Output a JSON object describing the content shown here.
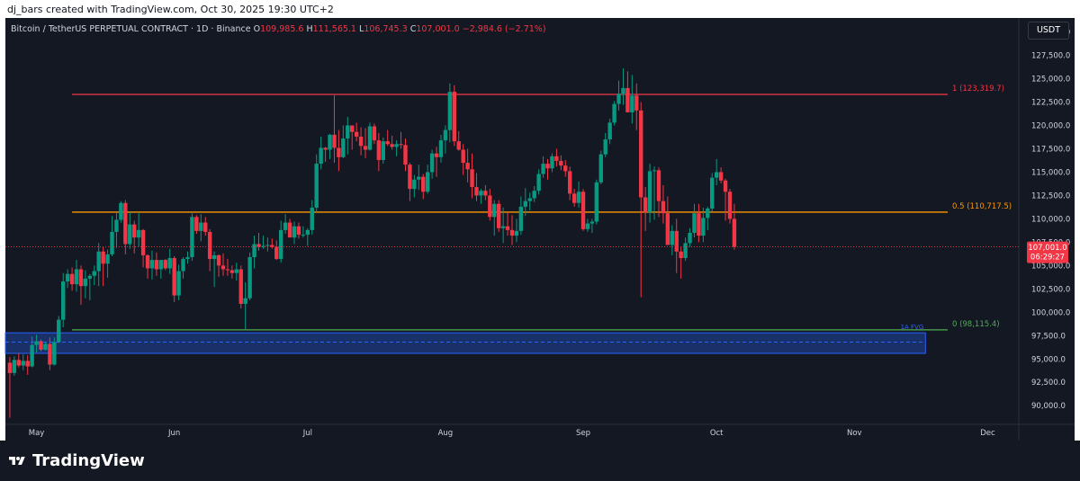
{
  "header": {
    "credit": "dj_bars created with TradingView.com, Oct 30, 2025 19:30 UTC+2"
  },
  "symbol_info": {
    "title": "Bitcoin / TetherUS PERPETUAL CONTRACT · 1D · Binance",
    "open_label": "O",
    "open_value": "109,985.6",
    "high_label": "H",
    "high_value": "111,565.1",
    "low_label": "L",
    "low_value": "106,745.3",
    "close_label": "C",
    "close_value": "107,001.0",
    "change": "−2,984.6 (−2.71%)"
  },
  "currency_button": "USDT",
  "brand": {
    "name": "TradingView"
  },
  "colors": {
    "up": "#089981",
    "down": "#f23645",
    "background": "#141823",
    "fib_1": "#f23645",
    "fib_05": "#ff9800",
    "fib_0": "#4caf50",
    "fvg": "#2962ff"
  },
  "chart_data": {
    "type": "candlestick",
    "title": "Bitcoin / TetherUS PERPETUAL CONTRACT · 1D · Binance",
    "y_axis": {
      "range": [
        88000,
        131500
      ],
      "ticks": [
        "130,000.0",
        "127,500.0",
        "125,000.0",
        "122,500.0",
        "120,000.0",
        "117,500.0",
        "115,000.0",
        "112,500.0",
        "110,000.0",
        "107,500.0",
        "105,000.0",
        "102,500.0",
        "100,000.0",
        "97,500.0",
        "95,000.0",
        "92,500.0",
        "90,000.0"
      ],
      "tick_values": [
        130000,
        127500,
        125000,
        122500,
        120000,
        117500,
        115000,
        112500,
        110000,
        107500,
        105000,
        102500,
        100000,
        97500,
        95000,
        92500,
        90000
      ]
    },
    "x_axis": {
      "range": [
        "2025-04-24",
        "2025-12-08"
      ],
      "ticks": [
        "May",
        "Jun",
        "Jul",
        "Aug",
        "Sep",
        "Oct",
        "Nov",
        "Dec"
      ],
      "tick_dates": [
        "2025-05-01",
        "2025-06-01",
        "2025-07-01",
        "2025-08-01",
        "2025-09-01",
        "2025-10-01",
        "2025-11-01",
        "2025-12-01"
      ]
    },
    "price_label": {
      "value": "107,001.0",
      "countdown": "06:29:27",
      "price": 107001.0
    },
    "fib_levels": [
      {
        "label": "1 (123,319.7)",
        "price": 123319.7,
        "color": "#f23645",
        "start": "2025-05-09",
        "end": "2025-11-22"
      },
      {
        "label": "0.5 (110,717.5)",
        "price": 110717.5,
        "color": "#ff9800",
        "start": "2025-05-09",
        "end": "2025-11-22"
      },
      {
        "label": "0 (98,115.4)",
        "price": 98115.4,
        "color": "#4caf50",
        "start": "2025-05-09",
        "end": "2025-11-22"
      }
    ],
    "zones": [
      {
        "label": "1A FVG",
        "top": 97800,
        "bottom": 95600,
        "mid": 96800,
        "start": "2025-04-24",
        "end": "2025-11-17"
      }
    ],
    "candles": {
      "start_date": "2025-04-25",
      "ohlc": [
        [
          94600,
          95200,
          88700,
          93500
        ],
        [
          93500,
          95300,
          93200,
          94900
        ],
        [
          94900,
          95600,
          94100,
          94300
        ],
        [
          94300,
          95500,
          93800,
          94800
        ],
        [
          94800,
          95400,
          93300,
          94200
        ],
        [
          94200,
          97400,
          94100,
          96500
        ],
        [
          96500,
          97600,
          95700,
          96900
        ],
        [
          96900,
          97100,
          95800,
          96000
        ],
        [
          96000,
          96800,
          95900,
          96600
        ],
        [
          96600,
          97300,
          93800,
          94400
        ],
        [
          94400,
          97300,
          94300,
          96800
        ],
        [
          96800,
          99600,
          96700,
          99200
        ],
        [
          99200,
          104200,
          98400,
          103300
        ],
        [
          103300,
          104600,
          102600,
          104100
        ],
        [
          104100,
          104800,
          102300,
          103000
        ],
        [
          103000,
          105600,
          102200,
          104600
        ],
        [
          104600,
          105000,
          100800,
          102800
        ],
        [
          102800,
          104500,
          101500,
          103600
        ],
        [
          103600,
          104100,
          101300,
          103900
        ],
        [
          103900,
          105000,
          102900,
          104400
        ],
        [
          104400,
          107400,
          102800,
          106500
        ],
        [
          106500,
          107000,
          102800,
          105200
        ],
        [
          105200,
          106700,
          103700,
          106200
        ],
        [
          106200,
          110300,
          106000,
          108600
        ],
        [
          108600,
          110600,
          106900,
          109900
        ],
        [
          109900,
          111900,
          109600,
          111700
        ],
        [
          111700,
          112000,
          106200,
          107300
        ],
        [
          107300,
          110700,
          106800,
          109400
        ],
        [
          109400,
          109800,
          106300,
          108000
        ],
        [
          108000,
          110600,
          107000,
          108800
        ],
        [
          108800,
          108900,
          104800,
          106100
        ],
        [
          106100,
          106200,
          103600,
          104700
        ],
        [
          104700,
          106600,
          103500,
          105600
        ],
        [
          105600,
          106400,
          103900,
          104600
        ],
        [
          104600,
          105600,
          103600,
          105600
        ],
        [
          105600,
          105700,
          104500,
          104700
        ],
        [
          104700,
          106800,
          104100,
          105800
        ],
        [
          105800,
          106000,
          101100,
          101800
        ],
        [
          101800,
          105100,
          101300,
          104400
        ],
        [
          104400,
          105900,
          103600,
          105700
        ],
        [
          105700,
          106500,
          105200,
          105900
        ],
        [
          105900,
          110600,
          105500,
          110200
        ],
        [
          110200,
          110400,
          108400,
          108700
        ],
        [
          108700,
          110500,
          107600,
          109600
        ],
        [
          109600,
          110200,
          108200,
          108600
        ],
        [
          108600,
          108900,
          104400,
          105700
        ],
        [
          105700,
          106500,
          102700,
          106100
        ],
        [
          106100,
          106200,
          103800,
          105000
        ],
        [
          105000,
          106300,
          103900,
          104600
        ],
        [
          104600,
          105700,
          103900,
          104500
        ],
        [
          104500,
          105000,
          103600,
          104200
        ],
        [
          104200,
          105300,
          103400,
          104600
        ],
        [
          104600,
          105000,
          100400,
          100900
        ],
        [
          100900,
          103200,
          98200,
          101500
        ],
        [
          101500,
          106400,
          101300,
          105900
        ],
        [
          105900,
          108200,
          104700,
          107300
        ],
        [
          107300,
          108500,
          106600,
          107000
        ],
        [
          107000,
          108200,
          106800,
          107100
        ],
        [
          107100,
          108000,
          106500,
          107200
        ],
        [
          107200,
          107900,
          106800,
          107000
        ],
        [
          107000,
          107700,
          105600,
          105700
        ],
        [
          105700,
          109800,
          105300,
          108800
        ],
        [
          108800,
          110500,
          108400,
          109600
        ],
        [
          109600,
          110000,
          108100,
          108000
        ],
        [
          108000,
          109700,
          107300,
          109200
        ],
        [
          109200,
          109600,
          107900,
          108300
        ],
        [
          108300,
          109200,
          108000,
          108300
        ],
        [
          108300,
          109000,
          107100,
          108800
        ],
        [
          108800,
          112000,
          108300,
          111200
        ],
        [
          111200,
          116900,
          110700,
          115900
        ],
        [
          115900,
          118800,
          115300,
          117600
        ],
        [
          117600,
          117700,
          116100,
          117400
        ],
        [
          117400,
          119100,
          116400,
          119000
        ],
        [
          119000,
          123200,
          116000,
          117600
        ],
        [
          117600,
          119500,
          115100,
          116600
        ],
        [
          116600,
          120000,
          116500,
          118600
        ],
        [
          118600,
          120900,
          116900,
          120000
        ],
        [
          120000,
          120000,
          117400,
          119300
        ],
        [
          119300,
          120300,
          118300,
          118800
        ],
        [
          118800,
          119800,
          116800,
          117800
        ],
        [
          117800,
          119700,
          116500,
          117400
        ],
        [
          117400,
          120300,
          117300,
          119900
        ],
        [
          119900,
          120200,
          118000,
          118400
        ],
        [
          118400,
          119200,
          115100,
          116300
        ],
        [
          116300,
          118700,
          115900,
          118300
        ],
        [
          118300,
          119500,
          117800,
          118000
        ],
        [
          118000,
          118900,
          117400,
          117700
        ],
        [
          117700,
          118400,
          116700,
          118000
        ],
        [
          118000,
          119300,
          117500,
          117900
        ],
        [
          117900,
          118600,
          115100,
          115800
        ],
        [
          115800,
          116000,
          111900,
          113200
        ],
        [
          113200,
          114700,
          112300,
          114200
        ],
        [
          114200,
          115800,
          113100,
          114500
        ],
        [
          114500,
          114800,
          112100,
          112900
        ],
        [
          112900,
          115800,
          112700,
          115000
        ],
        [
          115000,
          117400,
          114300,
          117000
        ],
        [
          117000,
          117700,
          114500,
          116600
        ],
        [
          116600,
          119000,
          116000,
          118400
        ],
        [
          118400,
          120000,
          117000,
          119500
        ],
        [
          119500,
          124500,
          118200,
          123600
        ],
        [
          123600,
          124300,
          117800,
          118300
        ],
        [
          118300,
          119400,
          117300,
          117400
        ],
        [
          117400,
          118000,
          114700,
          116000
        ],
        [
          116000,
          117500,
          113900,
          115300
        ],
        [
          115300,
          117000,
          112200,
          113400
        ],
        [
          113400,
          114900,
          111900,
          112500
        ],
        [
          112500,
          113200,
          111600,
          113000
        ],
        [
          113000,
          113600,
          112000,
          112500
        ],
        [
          112500,
          113200,
          109800,
          110200
        ],
        [
          110200,
          112000,
          108200,
          111600
        ],
        [
          111600,
          112000,
          108600,
          109000
        ],
        [
          109000,
          111200,
          107400,
          109200
        ],
        [
          109200,
          110700,
          108200,
          108800
        ],
        [
          108800,
          110400,
          107200,
          108200
        ],
        [
          108200,
          110000,
          107500,
          108700
        ],
        [
          108700,
          112400,
          108300,
          111300
        ],
        [
          111300,
          113300,
          110300,
          111900
        ],
        [
          111900,
          112800,
          110900,
          112200
        ],
        [
          112200,
          113500,
          111800,
          113000
        ],
        [
          113000,
          115300,
          112600,
          114800
        ],
        [
          114800,
          116700,
          114400,
          115900
        ],
        [
          115900,
          116400,
          114200,
          115400
        ],
        [
          115400,
          117000,
          115000,
          116700
        ],
        [
          116700,
          117500,
          115600,
          116200
        ],
        [
          116200,
          116800,
          115200,
          115700
        ],
        [
          115700,
          116300,
          114500,
          115100
        ],
        [
          115100,
          115600,
          112000,
          112700
        ],
        [
          112700,
          113200,
          111300,
          111700
        ],
        [
          111700,
          114000,
          111200,
          112900
        ],
        [
          112900,
          113200,
          108700,
          108900
        ],
        [
          108900,
          110000,
          108600,
          109500
        ],
        [
          109500,
          110000,
          108500,
          109700
        ],
        [
          109700,
          114200,
          109400,
          113900
        ],
        [
          113900,
          117300,
          113700,
          116900
        ],
        [
          116900,
          119200,
          116600,
          118500
        ],
        [
          118500,
          120700,
          118000,
          120300
        ],
        [
          120300,
          122600,
          120000,
          122300
        ],
        [
          122300,
          124800,
          121600,
          123400
        ],
        [
          123400,
          126100,
          122200,
          124000
        ],
        [
          124000,
          125800,
          121700,
          121400
        ],
        [
          121400,
          125400,
          120200,
          123200
        ],
        [
          123200,
          124500,
          119500,
          121600
        ],
        [
          121600,
          122500,
          101600,
          112300
        ],
        [
          112300,
          113400,
          108700,
          110700
        ],
        [
          110700,
          115900,
          109600,
          115100
        ],
        [
          115100,
          115600,
          109900,
          115200
        ],
        [
          115200,
          115500,
          110200,
          111900
        ],
        [
          111900,
          113600,
          109500,
          110600
        ],
        [
          110600,
          112400,
          107300,
          107200
        ],
        [
          107200,
          109300,
          106100,
          108700
        ],
        [
          108700,
          110000,
          104200,
          106500
        ],
        [
          106500,
          107000,
          103600,
          105800
        ],
        [
          105800,
          108000,
          105500,
          107400
        ],
        [
          107400,
          109000,
          107000,
          108500
        ],
        [
          108500,
          111600,
          108000,
          110600
        ],
        [
          110600,
          111600,
          107500,
          108200
        ],
        [
          108200,
          111200,
          107500,
          110100
        ],
        [
          110100,
          111300,
          108800,
          111100
        ],
        [
          111100,
          114900,
          110800,
          114400
        ],
        [
          114400,
          116400,
          113600,
          115000
        ],
        [
          115000,
          115500,
          113800,
          114100
        ],
        [
          114100,
          114300,
          109800,
          112900
        ],
        [
          112900,
          113200,
          109500,
          110000
        ],
        [
          110000,
          111600,
          106700,
          107000
        ]
      ]
    }
  }
}
